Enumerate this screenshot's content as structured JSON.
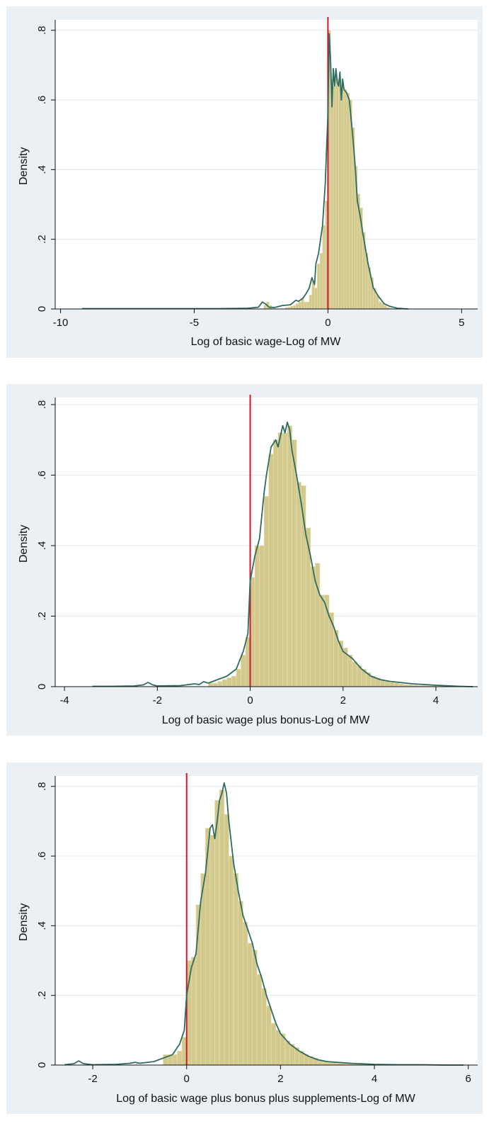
{
  "colors": {
    "bar": "#d4c98d",
    "bar_edge": "#e8dfb4",
    "kde": "#2e6b60",
    "ref_line": "#cc1a2e",
    "frame": "#eaf0f3",
    "grid": "#dfe9ec"
  },
  "chart_data": [
    {
      "type": "bar",
      "xlabel": "Log of basic wage-Log of MW",
      "ylabel": "Density",
      "xlim": [
        -10.2,
        5.6
      ],
      "ylim": [
        0,
        0.83
      ],
      "xticks": [
        -10,
        -5,
        0,
        5
      ],
      "xtick_labels": [
        "-10",
        "-5",
        "0",
        "5"
      ],
      "yticks": [
        0,
        0.2,
        0.4,
        0.6,
        0.8
      ],
      "ytick_labels": [
        "0",
        ".2",
        ".4",
        ".6",
        ".8"
      ],
      "reference_x": 0,
      "bin_width": 0.1,
      "bins_x": [
        -2.4,
        -2.3,
        -2.2,
        -1.6,
        -1.5,
        -1.4,
        -1.3,
        -1.2,
        -1.1,
        -1.0,
        -0.9,
        -0.8,
        -0.7,
        -0.6,
        -0.5,
        -0.4,
        -0.3,
        -0.2,
        -0.1,
        0.0,
        0.1,
        0.2,
        0.3,
        0.4,
        0.5,
        0.6,
        0.7,
        0.8,
        0.9,
        1.0,
        1.1,
        1.2,
        1.3,
        1.4,
        1.5,
        1.6,
        1.7,
        1.8,
        1.9,
        2.0,
        2.1,
        2.2,
        2.3
      ],
      "bins_density": [
        0.01,
        0.02,
        0.01,
        0.004,
        0.006,
        0.008,
        0.01,
        0.015,
        0.02,
        0.03,
        0.02,
        0.02,
        0.04,
        0.08,
        0.06,
        0.13,
        0.16,
        0.24,
        0.31,
        0.8,
        0.66,
        0.64,
        0.66,
        0.66,
        0.64,
        0.63,
        0.62,
        0.6,
        0.52,
        0.41,
        0.33,
        0.29,
        0.22,
        0.16,
        0.12,
        0.09,
        0.06,
        0.04,
        0.02,
        0.015,
        0.01,
        0.005,
        0.002
      ],
      "kde_x": [
        -9.2,
        -8,
        -6,
        -4,
        -3,
        -2.6,
        -2.45,
        -2.35,
        -2.2,
        -2,
        -1.7,
        -1.4,
        -1.2,
        -1.1,
        -0.95,
        -0.85,
        -0.7,
        -0.6,
        -0.5,
        -0.45,
        -0.35,
        -0.2,
        -0.1,
        0,
        0.05,
        0.1,
        0.15,
        0.2,
        0.25,
        0.3,
        0.35,
        0.4,
        0.45,
        0.5,
        0.55,
        0.6,
        0.7,
        0.8,
        0.9,
        1,
        1.1,
        1.2,
        1.3,
        1.5,
        1.7,
        1.9,
        2.1,
        2.3,
        2.6,
        3
      ],
      "kde_y": [
        0.001,
        0.001,
        0.001,
        0.001,
        0.002,
        0.005,
        0.02,
        0.015,
        0.005,
        0.004,
        0.01,
        0.012,
        0.025,
        0.022,
        0.03,
        0.04,
        0.06,
        0.09,
        0.07,
        0.13,
        0.16,
        0.24,
        0.36,
        0.56,
        0.79,
        0.71,
        0.58,
        0.69,
        0.64,
        0.69,
        0.65,
        0.64,
        0.68,
        0.6,
        0.66,
        0.63,
        0.62,
        0.6,
        0.52,
        0.43,
        0.31,
        0.27,
        0.22,
        0.13,
        0.06,
        0.035,
        0.015,
        0.008,
        0.002,
        0
      ]
    },
    {
      "type": "bar",
      "xlabel": "Log of basic wage plus bonus-Log of MW",
      "ylabel": "Density",
      "xlim": [
        -4.2,
        4.9
      ],
      "ylim": [
        0,
        0.82
      ],
      "xticks": [
        -4,
        -2,
        0,
        2,
        4
      ],
      "xtick_labels": [
        "-4",
        "-2",
        "0",
        "2",
        "4"
      ],
      "yticks": [
        0,
        0.2,
        0.4,
        0.6,
        0.8
      ],
      "ytick_labels": [
        "0",
        ".2",
        ".4",
        ".6",
        ".8"
      ],
      "reference_x": 0,
      "bin_width": 0.1,
      "bins_x": [
        -0.9,
        -0.8,
        -0.7,
        -0.6,
        -0.5,
        -0.4,
        -0.3,
        -0.2,
        -0.1,
        0.0,
        0.1,
        0.2,
        0.3,
        0.4,
        0.5,
        0.6,
        0.7,
        0.8,
        0.9,
        1.0,
        1.1,
        1.2,
        1.3,
        1.4,
        1.5,
        1.6,
        1.7,
        1.8,
        1.9,
        2.0,
        2.1,
        2.2,
        2.3,
        2.4,
        2.5,
        2.6,
        2.7,
        2.8,
        2.9,
        3.0,
        3.1,
        3.2,
        3.3,
        3.4,
        3.5,
        3.6,
        3.7,
        3.8,
        3.9,
        4.0
      ],
      "bins_density": [
        0.01,
        0.01,
        0.015,
        0.02,
        0.025,
        0.03,
        0.05,
        0.09,
        0.14,
        0.31,
        0.4,
        0.4,
        0.54,
        0.66,
        0.7,
        0.72,
        0.72,
        0.74,
        0.7,
        0.58,
        0.57,
        0.45,
        0.34,
        0.35,
        0.26,
        0.26,
        0.21,
        0.16,
        0.13,
        0.11,
        0.09,
        0.07,
        0.06,
        0.05,
        0.04,
        0.03,
        0.025,
        0.02,
        0.015,
        0.012,
        0.01,
        0.008,
        0.006,
        0.005,
        0.004,
        0.003,
        0.003,
        0.002,
        0.002,
        0.001
      ],
      "kde_x": [
        -3.4,
        -3,
        -2.5,
        -2.3,
        -2.2,
        -2.1,
        -2,
        -1.5,
        -1.2,
        -1.1,
        -1,
        -0.9,
        -0.7,
        -0.5,
        -0.3,
        -0.15,
        -0.05,
        0,
        0.1,
        0.2,
        0.3,
        0.35,
        0.45,
        0.55,
        0.6,
        0.7,
        0.75,
        0.8,
        0.85,
        0.9,
        1,
        1.1,
        1.2,
        1.3,
        1.4,
        1.5,
        1.6,
        1.7,
        1.8,
        1.9,
        2,
        2.2,
        2.4,
        2.6,
        2.8,
        3,
        3.5,
        4,
        4.5,
        4.8
      ],
      "kde_y": [
        0.001,
        0.001,
        0.002,
        0.005,
        0.012,
        0.005,
        0.002,
        0.003,
        0.008,
        0.006,
        0.014,
        0.01,
        0.02,
        0.03,
        0.05,
        0.1,
        0.15,
        0.3,
        0.37,
        0.42,
        0.55,
        0.6,
        0.68,
        0.7,
        0.68,
        0.74,
        0.72,
        0.75,
        0.73,
        0.67,
        0.6,
        0.52,
        0.43,
        0.37,
        0.3,
        0.26,
        0.24,
        0.2,
        0.17,
        0.13,
        0.1,
        0.08,
        0.05,
        0.03,
        0.02,
        0.015,
        0.008,
        0.004,
        0.001,
        0
      ]
    },
    {
      "type": "bar",
      "xlabel": "Log of basic wage plus bonus plus supplements-Log of MW",
      "ylabel": "Density",
      "xlim": [
        -2.8,
        6.2
      ],
      "ylim": [
        0,
        0.83
      ],
      "xticks": [
        -2,
        0,
        2,
        4,
        6
      ],
      "xtick_labels": [
        "-2",
        "0",
        "2",
        "4",
        "6"
      ],
      "yticks": [
        0,
        0.2,
        0.4,
        0.6,
        0.8
      ],
      "ytick_labels": [
        "0",
        ".2",
        ".4",
        ".6",
        ".8"
      ],
      "reference_x": 0,
      "bin_width": 0.1,
      "bins_x": [
        -0.5,
        -0.4,
        -0.3,
        -0.2,
        -0.1,
        0.0,
        0.1,
        0.2,
        0.3,
        0.4,
        0.5,
        0.6,
        0.7,
        0.8,
        0.9,
        1.0,
        1.1,
        1.2,
        1.3,
        1.4,
        1.5,
        1.6,
        1.7,
        1.8,
        1.9,
        2.0,
        2.1,
        2.2,
        2.3,
        2.4,
        2.5,
        2.6,
        2.7,
        2.8,
        2.9,
        3.0,
        3.1,
        3.2,
        3.3,
        3.4,
        3.5,
        3.6,
        3.7,
        3.8,
        3.9,
        4.0
      ],
      "bins_density": [
        0.03,
        0.03,
        0.03,
        0.04,
        0.08,
        0.3,
        0.31,
        0.46,
        0.55,
        0.68,
        0.66,
        0.76,
        0.79,
        0.72,
        0.6,
        0.55,
        0.47,
        0.41,
        0.35,
        0.33,
        0.26,
        0.22,
        0.17,
        0.12,
        0.1,
        0.09,
        0.07,
        0.06,
        0.05,
        0.04,
        0.03,
        0.025,
        0.02,
        0.015,
        0.012,
        0.01,
        0.008,
        0.006,
        0.005,
        0.004,
        0.003,
        0.003,
        0.002,
        0.002,
        0.001,
        0.001
      ],
      "kde_x": [
        -2.6,
        -2.4,
        -2.3,
        -2.2,
        -2,
        -1.5,
        -1.2,
        -1.1,
        -1,
        -0.7,
        -0.5,
        -0.3,
        -0.15,
        -0.05,
        0,
        0.1,
        0.2,
        0.3,
        0.4,
        0.5,
        0.55,
        0.6,
        0.65,
        0.7,
        0.75,
        0.8,
        0.85,
        0.9,
        1,
        1.1,
        1.2,
        1.3,
        1.4,
        1.5,
        1.6,
        1.7,
        1.8,
        1.9,
        2,
        2.2,
        2.4,
        2.6,
        2.8,
        3,
        3.5,
        4,
        4.5,
        5,
        5.5,
        5.9
      ],
      "kde_y": [
        0.001,
        0.004,
        0.012,
        0.004,
        0.001,
        0.002,
        0.005,
        0.008,
        0.005,
        0.01,
        0.02,
        0.03,
        0.06,
        0.1,
        0.2,
        0.28,
        0.32,
        0.47,
        0.55,
        0.68,
        0.69,
        0.65,
        0.7,
        0.76,
        0.78,
        0.81,
        0.78,
        0.7,
        0.58,
        0.5,
        0.43,
        0.39,
        0.35,
        0.29,
        0.25,
        0.2,
        0.16,
        0.12,
        0.09,
        0.06,
        0.04,
        0.025,
        0.015,
        0.01,
        0.005,
        0.002,
        0.001,
        0.001,
        0,
        0
      ]
    }
  ]
}
